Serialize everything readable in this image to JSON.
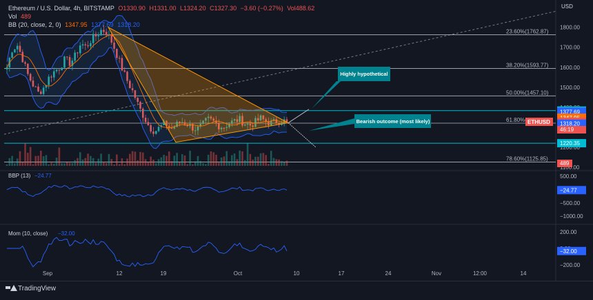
{
  "header": {
    "symbol": "Ethereum / U.S. Dollar, 4h, BITSTAMP",
    "open": "O1330.90",
    "high": "H1331.00",
    "low": "L1324.20",
    "close": "C1327.30",
    "change": "−3.60 (−0.27%)",
    "vol_ohlc": "Vol488.62",
    "vol_label": "Vol",
    "vol_value": "489",
    "bb_label": "BB (20, close, 2, 0)",
    "bb_basis": "1347.95",
    "bb_upper": "1377.69",
    "bb_lower": "1318.20"
  },
  "footer": {
    "brand": "TradingView"
  },
  "colors": {
    "background": "#131722",
    "up": "#26a69a",
    "down": "#ef5350",
    "bb_band": "#2962ff",
    "bb_basis": "#ff6d00",
    "triangle": "#ff9800",
    "teal_line": "#00bcd4",
    "callout": "#00838f",
    "indicator": "#2962ff"
  },
  "chart_data": [
    {
      "type": "candlestick",
      "title": "Ethereum / U.S. Dollar, 4h, BITSTAMP",
      "y_axis_label": "USD",
      "price_ticks": [
        1800,
        1700,
        1600,
        1500,
        1400,
        1300,
        1200,
        1100
      ],
      "x_ticks": [
        "Sep",
        "12",
        "19",
        "Oct",
        "10",
        "17",
        "24",
        "Nov",
        "12:00",
        "14"
      ],
      "price_path": [
        1600,
        1690,
        1710,
        1640,
        1560,
        1510,
        1470,
        1500,
        1550,
        1580,
        1600,
        1640,
        1620,
        1660,
        1720,
        1700,
        1740,
        1760,
        1790,
        1770,
        1720,
        1650,
        1580,
        1520,
        1470,
        1400,
        1350,
        1300,
        1280,
        1300,
        1320,
        1290,
        1310,
        1330,
        1320,
        1300,
        1290,
        1310,
        1340,
        1330,
        1310,
        1300,
        1320,
        1330,
        1340,
        1320,
        1310,
        1325,
        1345,
        1330,
        1320,
        1328,
        1335,
        1327
      ],
      "last_price": 1327.3,
      "price_labels": [
        {
          "value": 1383.49,
          "label": "1383.49",
          "color": "#00bcd4"
        },
        {
          "value": 1377.69,
          "label": "1377.69",
          "color": "#2962ff"
        },
        {
          "value": 1347.95,
          "label": "1347.95",
          "color": "#ff6d00"
        },
        {
          "value": 1327.3,
          "label": "1327.30",
          "color": "#ef5350"
        },
        {
          "value": 1318.2,
          "label": "1318.20",
          "color": "#2962ff"
        },
        {
          "value": 1220.35,
          "label": "1220.35",
          "color": "#00bcd4"
        }
      ],
      "countdown": "46:19",
      "symbol_tag": "ETHUSD",
      "volume_label": "489",
      "fibonacci": [
        {
          "label": "23.60%(1762.87)",
          "value": 1762.87
        },
        {
          "label": "38.20%(1593.77)",
          "value": 1593.77
        },
        {
          "label": "50.00%(1457.10)",
          "value": 1457.1
        },
        {
          "label": "61.80%(1320.43)",
          "value": 1320.43
        },
        {
          "label": "78.60%(1125.85)",
          "value": 1125.85
        }
      ],
      "horizontal_levels": [
        1383.49,
        1220.35
      ],
      "annotations": [
        "Highly hypothetical",
        "Bearish outcome (most likely)"
      ]
    },
    {
      "type": "line",
      "title": "BBP (13)",
      "value_label": "−24.77",
      "ticks": [
        "500.00",
        "0.00",
        "−500.00",
        "−1000.00"
      ],
      "ylim": [
        -1200,
        600
      ],
      "last_value": -24.77
    },
    {
      "type": "line",
      "title": "Mom (10, close)",
      "value_label": "−32.00",
      "ticks": [
        "200.00",
        "0.00",
        "−200.00"
      ],
      "ylim": [
        -260,
        260
      ],
      "last_value": -32.0
    }
  ]
}
